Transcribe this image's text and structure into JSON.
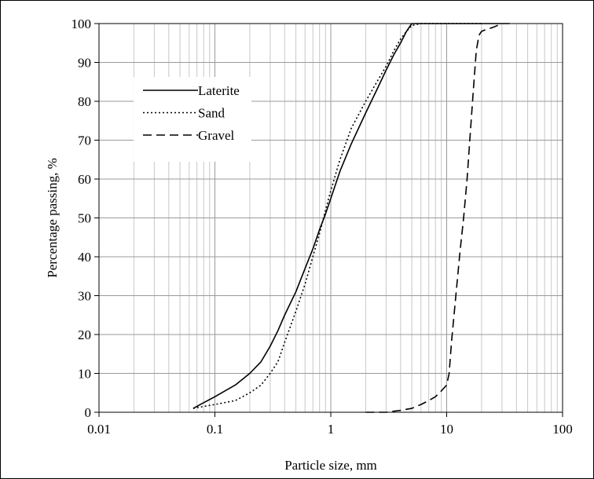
{
  "chart_data": {
    "type": "line",
    "title": "",
    "xlabel": "Particle size,  mm",
    "ylabel": "Percentage passing,   %",
    "xscale": "log",
    "xlim": [
      0.01,
      100
    ],
    "ylim": [
      0,
      100
    ],
    "x_ticks": [
      "0.01",
      "0.1",
      "1",
      "10",
      "100"
    ],
    "y_ticks": [
      "0",
      "10",
      "20",
      "30",
      "40",
      "50",
      "60",
      "70",
      "80",
      "90",
      "100"
    ],
    "grid": "on",
    "legend_position": "upper-left",
    "series": [
      {
        "name": "Laterite",
        "style": "solid",
        "x": [
          0.065,
          0.075,
          0.1,
          0.15,
          0.2,
          0.25,
          0.3,
          0.35,
          0.4,
          0.5,
          0.6,
          0.7,
          0.8,
          0.9,
          1.0,
          1.2,
          1.5,
          2.0,
          2.5,
          3.0,
          3.5,
          4.0,
          4.5,
          5.0,
          6.0,
          10,
          20,
          30
        ],
        "y": [
          1,
          2,
          4,
          7,
          10,
          13,
          17,
          21,
          25,
          31,
          37,
          42,
          47,
          51,
          55,
          62,
          69,
          77,
          83,
          88,
          92,
          95,
          98,
          100,
          100,
          100,
          100,
          100
        ]
      },
      {
        "name": "Sand",
        "style": "dotted",
        "x": [
          0.065,
          0.08,
          0.1,
          0.15,
          0.2,
          0.25,
          0.3,
          0.35,
          0.4,
          0.5,
          0.6,
          0.7,
          0.8,
          0.9,
          1.0,
          1.2,
          1.5,
          2.0,
          2.5,
          3.0,
          3.5,
          4.0,
          4.5,
          5.0,
          6.0,
          10,
          20
        ],
        "y": [
          1,
          1.5,
          2,
          3,
          5,
          7,
          10,
          13,
          18,
          26,
          33,
          40,
          46,
          52,
          57,
          65,
          73,
          80,
          85,
          89,
          93,
          96,
          98,
          99.5,
          100,
          100,
          100
        ]
      },
      {
        "name": "Gravel",
        "style": "dashed",
        "x": [
          2.0,
          3.0,
          4.0,
          5.0,
          6.0,
          7.0,
          8.0,
          9.0,
          10.0,
          10.5,
          11.0,
          12.0,
          13.0,
          14.0,
          15.0,
          16.0,
          17.0,
          18.0,
          19.0,
          20.0,
          22.0,
          25.0,
          30.0,
          35.0
        ],
        "y": [
          0,
          0,
          0.5,
          1,
          2,
          3,
          4,
          5.5,
          7,
          10,
          18,
          30,
          41,
          50,
          60,
          72,
          83,
          93,
          97,
          98,
          98.5,
          99,
          100,
          100
        ]
      }
    ]
  }
}
